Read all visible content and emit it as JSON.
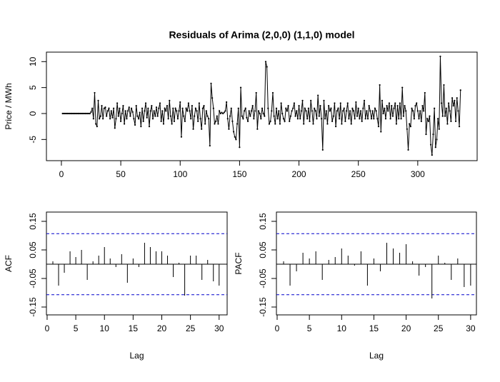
{
  "chart_data": [
    {
      "type": "line",
      "title": "Residuals of Arima (2,0,0) (1,1,0) model",
      "ylabel": "Price / MWh",
      "color": "#000000",
      "xlim": [
        -12.6,
        350
      ],
      "xticks": [
        0,
        50,
        100,
        150,
        200,
        250,
        300
      ],
      "ylim": [
        -9.08,
        11.83
      ],
      "yticks": [
        -5,
        0,
        5,
        10
      ],
      "x": [
        1,
        2,
        3,
        4,
        5,
        6,
        7,
        8,
        9,
        10,
        11,
        12,
        13,
        14,
        15,
        16,
        17,
        18,
        19,
        20,
        21,
        22,
        23,
        24,
        25,
        26,
        27,
        28,
        29,
        30,
        31,
        32,
        33,
        34,
        35,
        36,
        37,
        38,
        39,
        40,
        41,
        42,
        43,
        44,
        45,
        46,
        47,
        48,
        49,
        50,
        51,
        52,
        53,
        54,
        55,
        56,
        57,
        58,
        59,
        60,
        61,
        62,
        63,
        64,
        65,
        66,
        67,
        68,
        69,
        70,
        71,
        72,
        73,
        74,
        75,
        76,
        77,
        78,
        79,
        80,
        81,
        82,
        83,
        84,
        85,
        86,
        87,
        88,
        89,
        90,
        91,
        92,
        93,
        94,
        95,
        96,
        97,
        98,
        99,
        100,
        101,
        102,
        103,
        104,
        105,
        106,
        107,
        108,
        109,
        110,
        111,
        112,
        113,
        114,
        115,
        116,
        117,
        118,
        119,
        120,
        121,
        122,
        123,
        124,
        125,
        126,
        127,
        128,
        129,
        130,
        131,
        132,
        133,
        134,
        135,
        136,
        137,
        138,
        139,
        140,
        141,
        142,
        143,
        144,
        145,
        146,
        147,
        148,
        149,
        150,
        151,
        152,
        153,
        154,
        155,
        156,
        157,
        158,
        159,
        160,
        161,
        162,
        163,
        164,
        165,
        166,
        167,
        168,
        169,
        170,
        171,
        172,
        173,
        174,
        175,
        176,
        177,
        178,
        179,
        180,
        181,
        182,
        183,
        184,
        185,
        186,
        187,
        188,
        189,
        190,
        191,
        192,
        193,
        194,
        195,
        196,
        197,
        198,
        199,
        200,
        201,
        202,
        203,
        204,
        205,
        206,
        207,
        208,
        209,
        210,
        211,
        212,
        213,
        214,
        215,
        216,
        217,
        218,
        219,
        220,
        221,
        222,
        223,
        224,
        225,
        226,
        227,
        228,
        229,
        230,
        231,
        232,
        233,
        234,
        235,
        236,
        237,
        238,
        239,
        240,
        241,
        242,
        243,
        244,
        245,
        246,
        247,
        248,
        249,
        250,
        251,
        252,
        253,
        254,
        255,
        256,
        257,
        258,
        259,
        260,
        261,
        262,
        263,
        264,
        265,
        266,
        267,
        268,
        269,
        270,
        271,
        272,
        273,
        274,
        275,
        276,
        277,
        278,
        279,
        280,
        281,
        282,
        283,
        284,
        285,
        286,
        287,
        288,
        289,
        290,
        291,
        292,
        293,
        294,
        295,
        296,
        297,
        298,
        299,
        300,
        301,
        302,
        303,
        304,
        305,
        306,
        307,
        308,
        309,
        310,
        311,
        312,
        313,
        314,
        315,
        316,
        317,
        318,
        319,
        320,
        321,
        322,
        323,
        324,
        325,
        326,
        327,
        328,
        329,
        330,
        331,
        332,
        333,
        334,
        335,
        336
      ],
      "values": [
        0,
        0,
        0,
        0,
        0,
        0,
        0,
        0,
        0,
        0,
        0,
        0,
        0,
        0,
        0,
        0,
        0,
        0,
        0,
        0,
        0,
        0,
        0,
        0,
        0.3,
        1,
        -1,
        4,
        -2,
        -2.5,
        2.5,
        -1,
        -0.5,
        1.5,
        -1,
        1,
        1.2,
        -0.5,
        0.5,
        1,
        -1,
        0.5,
        -0.8,
        1,
        -2.8,
        -1,
        2,
        -0.5,
        1,
        -1.5,
        0,
        1.5,
        -2,
        0.5,
        -1,
        0.5,
        1.2,
        -0.5,
        1,
        0.3,
        -1,
        -2.2,
        1.5,
        -0.5,
        -1,
        0.2,
        -2.5,
        1,
        -1.5,
        0.5,
        2,
        -0.8,
        1,
        -2.5,
        0.5,
        1.5,
        -1,
        0.5,
        -0.5,
        1.2,
        -0.5,
        1,
        2,
        -1.5,
        0.5,
        -2,
        1,
        0.5,
        1.5,
        -1,
        2.5,
        -0.5,
        -2,
        1,
        -1.5,
        1,
        0.5,
        -1,
        0.5,
        2.2,
        -4.5,
        1,
        -0.5,
        -1.5,
        1,
        0.5,
        2,
        0.5,
        -1,
        1.5,
        -3,
        -0.5,
        1,
        0.5,
        -1.5,
        2,
        -1,
        -3,
        1,
        1.5,
        -2,
        0.5,
        -0.5,
        -1,
        -6.2,
        5.8,
        3,
        1,
        -2,
        -1.5,
        -0.5,
        -2,
        0.5,
        0,
        0.2,
        0,
        0.2,
        0.5,
        2.2,
        -1,
        -3,
        -0.5,
        1,
        -1.5,
        -3.5,
        -4.5,
        -5,
        -2,
        1,
        -6.5,
        5,
        -0.5,
        -1,
        0.5,
        1,
        -0.8,
        -1.5,
        0.5,
        -0.5,
        0.5,
        1.5,
        -1,
        0.5,
        4,
        -3,
        0.5,
        0,
        -1,
        1,
        0,
        -0.5,
        10,
        9,
        1,
        -2,
        -1.5,
        0.5,
        4,
        -0.5,
        -2,
        1,
        -1,
        0.5,
        -2,
        2,
        0,
        -1,
        -1.5,
        1,
        0.5,
        1.5,
        -1.5,
        -0.5,
        0.5,
        1,
        2,
        -0.5,
        0.5,
        -1,
        1.5,
        -1,
        0.5,
        2.5,
        -2,
        1,
        0.5,
        -1,
        1,
        -1.5,
        2.5,
        0.5,
        -2,
        1,
        0.5,
        -1,
        3.5,
        -0.5,
        1.5,
        -1,
        -7,
        2.5,
        -1,
        0.5,
        -2,
        1.5,
        0.5,
        1,
        -1.5,
        -0.5,
        2,
        -2.5,
        0.5,
        1,
        -1,
        2,
        -2,
        0.5,
        1,
        -1.5,
        0.5,
        2,
        -1,
        0.5,
        -2,
        1,
        0.5,
        -1,
        2.2,
        -0.5,
        1,
        -1,
        0.5,
        -1.5,
        1,
        2.5,
        -1,
        0.5,
        -1,
        1.5,
        0.5,
        -1,
        0.5,
        -1,
        1,
        0.5,
        -1,
        -2.5,
        5.5,
        -3.5,
        2.5,
        0,
        1,
        -1,
        1.5,
        0.5,
        2,
        -1,
        1.5,
        -0.5,
        1,
        2,
        -2,
        1.5,
        -1,
        2,
        -1,
        5,
        -0.5,
        1.5,
        0.5,
        -3,
        -7,
        -2,
        -2.5,
        1,
        0.5,
        -1,
        1.5,
        2,
        0.5,
        -1,
        0.5,
        -1.5,
        1.5,
        0.5,
        4,
        -4,
        -1,
        -1.5,
        -0.5,
        -6,
        -8,
        -4,
        1,
        -6.5,
        -5,
        -1,
        -3,
        11,
        2,
        -0.5,
        5.5,
        -0.5,
        1,
        -2,
        2,
        0.5,
        -1.5,
        3,
        1.5,
        2.5,
        -1.5,
        3,
        0.5,
        -2.5,
        4.5
      ]
    },
    {
      "type": "bar",
      "xlabel": "Lag",
      "ylabel": "ACF",
      "color": "#000000",
      "ci": [
        0.107,
        -0.107
      ],
      "ci_color": "#0000cc",
      "xlim": [
        -0.12,
        31.4
      ],
      "xticks": [
        0,
        5,
        10,
        15,
        20,
        25,
        30
      ],
      "ylim": [
        -0.1775,
        0.1825
      ],
      "yticks": [
        -0.15,
        -0.05,
        0.05,
        0.15
      ],
      "x": [
        1,
        2,
        3,
        4,
        5,
        6,
        7,
        8,
        9,
        10,
        11,
        12,
        13,
        14,
        15,
        16,
        17,
        18,
        19,
        20,
        21,
        22,
        23,
        24,
        25,
        26,
        27,
        28,
        29,
        30
      ],
      "values": [
        0.01,
        -0.075,
        -0.03,
        0.045,
        0.025,
        0.05,
        -0.055,
        0.01,
        0.03,
        0.06,
        0.02,
        -0.01,
        0.035,
        -0.065,
        0.02,
        -0.01,
        0.075,
        0.06,
        0.045,
        0.045,
        0.03,
        -0.045,
        0.005,
        -0.11,
        0.03,
        0.03,
        -0.055,
        0.015,
        -0.06,
        -0.075
      ]
    },
    {
      "type": "bar",
      "xlabel": "Lag",
      "ylabel": "PACF",
      "color": "#000000",
      "ci": [
        0.107,
        -0.107
      ],
      "ci_color": "#0000cc",
      "xlim": [
        -0.11,
        30.9
      ],
      "xticks": [
        0,
        5,
        10,
        15,
        20,
        25,
        30
      ],
      "ylim": [
        -0.1775,
        0.1825
      ],
      "yticks": [
        -0.15,
        -0.05,
        0.05,
        0.15
      ],
      "x": [
        1,
        2,
        3,
        4,
        5,
        6,
        7,
        8,
        9,
        10,
        11,
        12,
        13,
        14,
        15,
        16,
        17,
        18,
        19,
        20,
        21,
        22,
        23,
        24,
        25,
        26,
        27,
        28,
        29,
        30
      ],
      "values": [
        0.01,
        -0.075,
        -0.025,
        0.04,
        0.02,
        0.045,
        -0.055,
        0.015,
        0.025,
        0.055,
        0.03,
        -0.005,
        0.045,
        -0.075,
        0.02,
        -0.025,
        0.075,
        0.055,
        0.04,
        0.07,
        0.01,
        -0.04,
        -0.01,
        -0.12,
        0.03,
        0.005,
        -0.055,
        0.02,
        -0.08,
        -0.075
      ]
    }
  ]
}
